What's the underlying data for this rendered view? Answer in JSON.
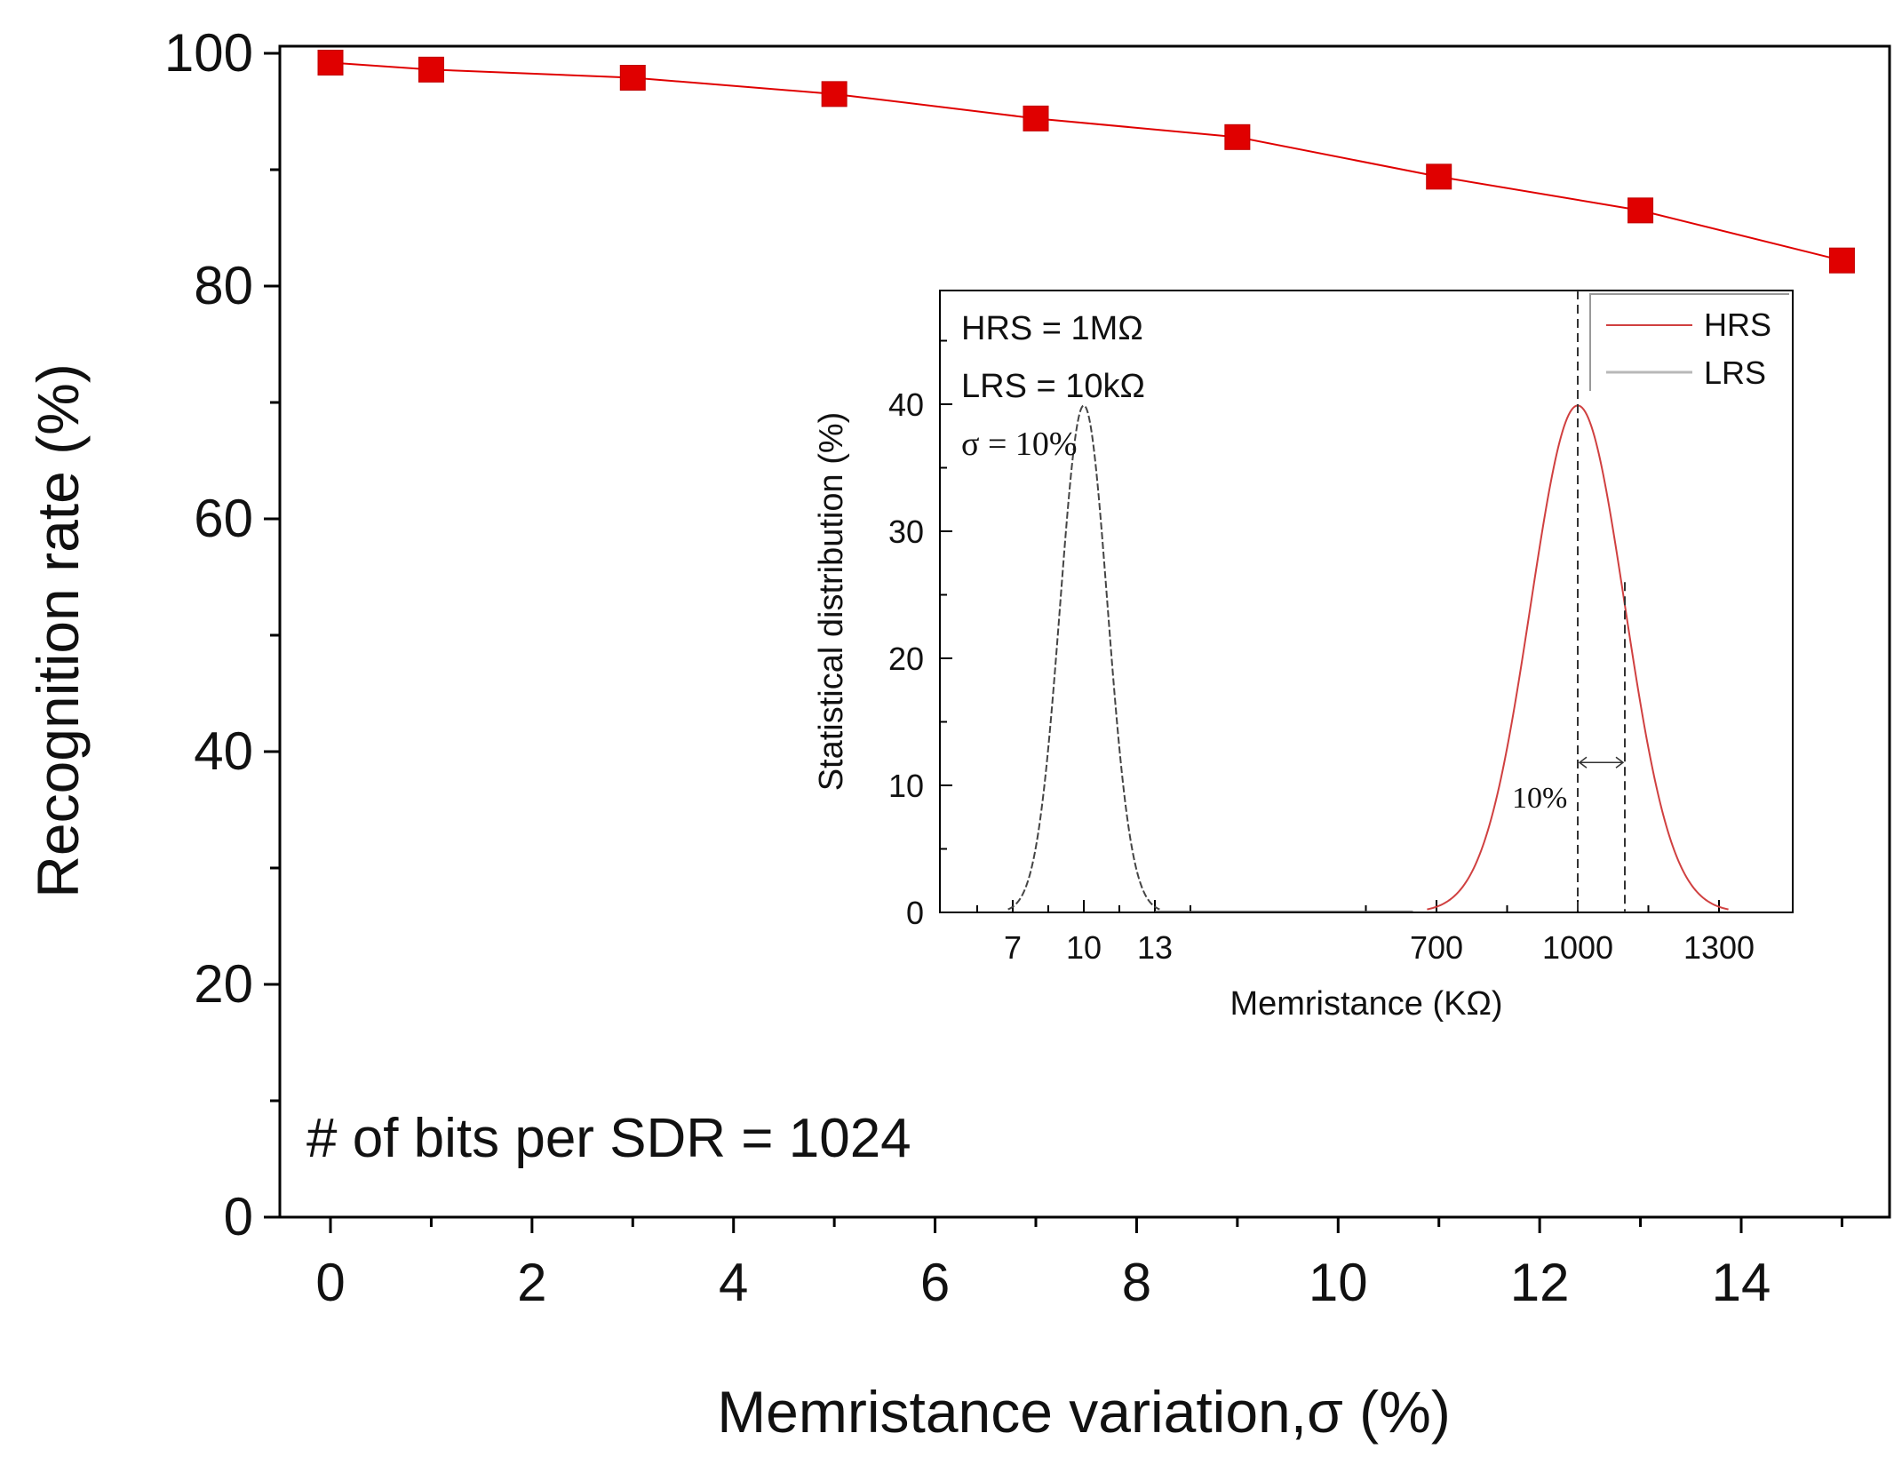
{
  "chart_data": [
    {
      "type": "line",
      "title": "",
      "xlabel": "Memristance variation,σ (%)",
      "ylabel": "Recognition rate (%)",
      "xlim": [
        -0.7,
        15.5
      ],
      "ylim": [
        0,
        100
      ],
      "xticks": [
        0,
        2,
        4,
        6,
        8,
        10,
        12,
        14
      ],
      "yticks": [
        0,
        20,
        40,
        60,
        80,
        100
      ],
      "x": [
        0,
        1,
        3,
        5,
        7,
        9,
        11,
        13,
        15
      ],
      "series": [
        {
          "values": [
            99.2,
            98.6,
            97.9,
            96.5,
            94.4,
            92.8,
            89.4,
            86.5,
            82.2
          ],
          "color": "#e00000",
          "marker": "square"
        }
      ],
      "annotations": [
        "# of bits per SDR = 1024"
      ],
      "grid": false,
      "legend": null
    },
    {
      "type": "line",
      "title": "",
      "xlabel": "Memristance (KΩ)",
      "ylabel": "Statistical distribution (%)",
      "x_axis_break": true,
      "x_segments": [
        {
          "range": [
            5,
            15
          ],
          "ticks": [
            7,
            10,
            13
          ]
        },
        {
          "range": [
            500,
            1500
          ],
          "ticks": [
            700,
            1000,
            1300
          ]
        }
      ],
      "ylim": [
        0,
        50
      ],
      "yticks": [
        0,
        10,
        20,
        30,
        40
      ],
      "series": [
        {
          "name": "HRS",
          "color": "#d04040",
          "segment": 2,
          "mean": 1000,
          "sigma_percent": 10,
          "peak": 39.9
        },
        {
          "name": "LRS",
          "color": "#b8b8b8",
          "segment": 1,
          "mean": 10,
          "sigma_percent": 10,
          "peak": 39.9,
          "drawn_color": "#444444",
          "dashed": true
        }
      ],
      "annotations": [
        "HRS = 1MΩ",
        "LRS = 10kΩ",
        "σ = 10%",
        "10%"
      ],
      "legend": "top-right",
      "grid": false
    }
  ]
}
